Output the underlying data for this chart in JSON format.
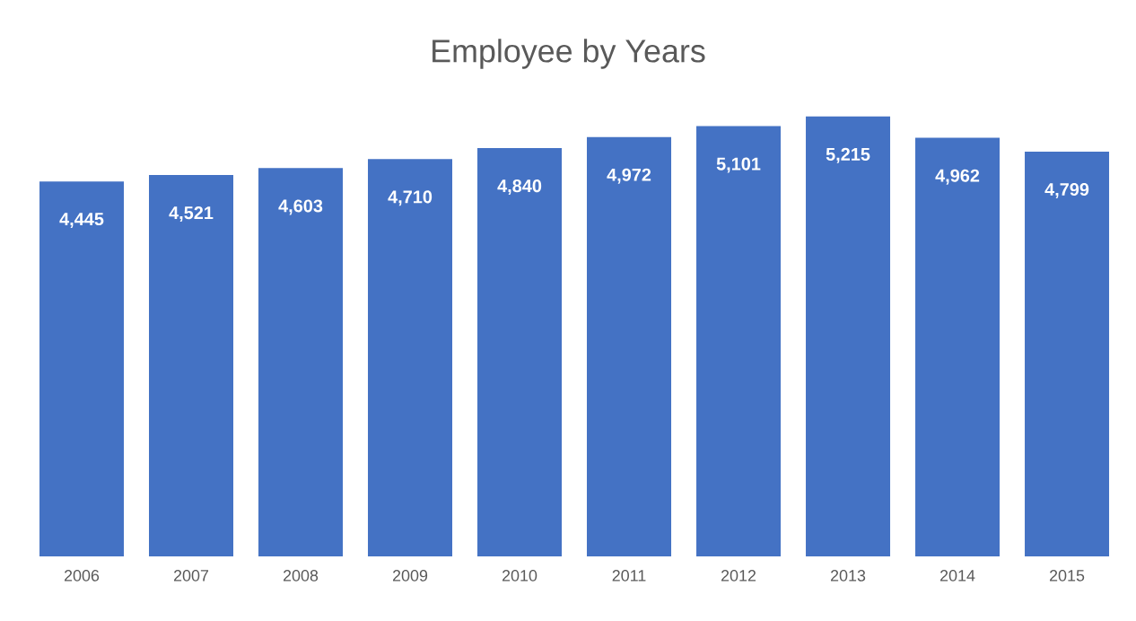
{
  "chart_data": {
    "type": "bar",
    "title": "Employee by Years",
    "categories": [
      "2006",
      "2007",
      "2008",
      "2009",
      "2010",
      "2011",
      "2012",
      "2013",
      "2014",
      "2015"
    ],
    "values": [
      4445,
      4521,
      4603,
      4710,
      4840,
      4972,
      5101,
      5215,
      4962,
      4799
    ],
    "value_labels": [
      "4,445",
      "4,521",
      "4,603",
      "4,710",
      "4,840",
      "4,972",
      "5,101",
      "5,215",
      "4,962",
      "4,799"
    ],
    "color": "#4472c4"
  }
}
